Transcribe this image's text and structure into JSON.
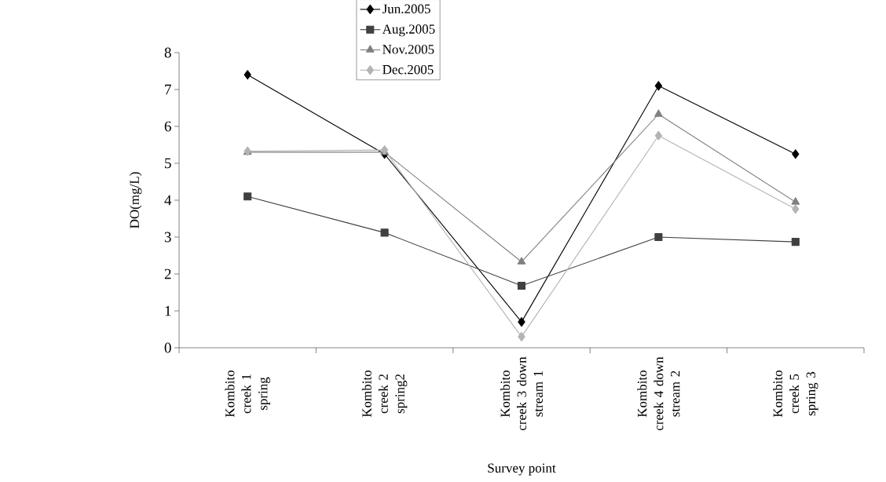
{
  "chart_data": {
    "type": "line",
    "xlabel": "Survey point",
    "ylabel": "DO(mg/L)",
    "categories": [
      "Kombito creek 1 spring",
      "Kombito creek 2 spring2",
      "Kombito creek 3 down stream 1",
      "Kombito creek 4 down stream 2",
      "Kombito creek 5 spring 3"
    ],
    "ylim": [
      0,
      8
    ],
    "yticks": [
      0,
      1,
      2,
      3,
      4,
      5,
      6,
      7,
      8
    ],
    "grid": false,
    "legend": "top",
    "line_style": "solid",
    "series": [
      {
        "name": "Jun.2005",
        "color": "#000000",
        "marker": "diamond",
        "values": [
          7.4,
          5.25,
          0.7,
          7.1,
          5.25
        ]
      },
      {
        "name": "Aug.2005",
        "color": "#404040",
        "marker": "square",
        "values": [
          4.1,
          3.12,
          1.68,
          3.0,
          2.87
        ]
      },
      {
        "name": "Nov.2005",
        "color": "#808080",
        "marker": "triangle",
        "values": [
          5.3,
          5.3,
          2.33,
          6.33,
          3.95
        ]
      },
      {
        "name": "Dec.2005",
        "color": "#b4b4b4",
        "marker": "diamond",
        "values": [
          5.33,
          5.36,
          0.3,
          5.75,
          3.76
        ]
      }
    ]
  }
}
